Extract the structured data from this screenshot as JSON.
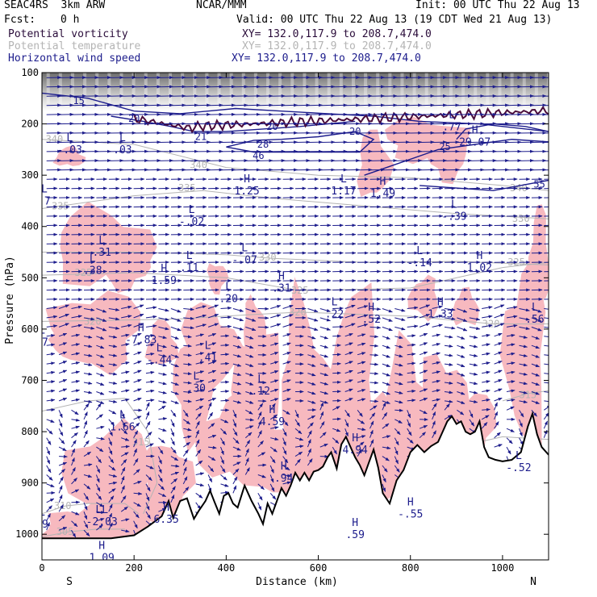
{
  "header": {
    "model": "SEAC4RS  3km ARW",
    "org": "NCAR/MMM",
    "init": "Init: 00 UTC Thu 22 Aug 13",
    "fcst_label": "Fcst:",
    "fcst_value": "0 h",
    "valid": "Valid: 00 UTC Thu 22 Aug 13 (19 CDT Wed 21 Aug 13)",
    "fields": [
      {
        "name": "Potential vorticity",
        "xy": "XY= 132.0,117.9 to 208.7,474.0"
      },
      {
        "name": "Potential temperature",
        "xy": "XY= 132.0,117.9 to 208.7,474.0"
      },
      {
        "name": "Horizontal wind speed",
        "xy": "XY= 132.0,117.9 to 208.7,474.0"
      }
    ]
  },
  "chart_data": {
    "type": "cross-section",
    "xlabel": "Distance (km)",
    "ylabel": "Pressure (hPa)",
    "xlim": [
      0,
      1100
    ],
    "ylim": [
      1050,
      100
    ],
    "x_ticks": [
      0,
      200,
      400,
      600,
      800,
      1000
    ],
    "y_ticks": [
      100,
      200,
      300,
      400,
      500,
      600,
      700,
      800,
      900,
      1000
    ],
    "x_end_labels": {
      "left": "S",
      "right": "N"
    },
    "colors": {
      "pv_shading": "#f7b9bf",
      "pv_strat": "#8a8a8a",
      "theta_contour": "#b4b4b4",
      "wind_contour": "#1c1c8c",
      "wind_vector": "#1c1c8c",
      "terrain": "#000000",
      "tropopause": "#4a0c3a"
    },
    "terrain_profile": [
      [
        0,
        1008
      ],
      [
        100,
        1008
      ],
      [
        150,
        1008
      ],
      [
        200,
        1002
      ],
      [
        230,
        985
      ],
      [
        260,
        965
      ],
      [
        275,
        935
      ],
      [
        285,
        968
      ],
      [
        300,
        935
      ],
      [
        315,
        930
      ],
      [
        330,
        970
      ],
      [
        340,
        955
      ],
      [
        355,
        935
      ],
      [
        365,
        915
      ],
      [
        375,
        938
      ],
      [
        385,
        960
      ],
      [
        395,
        925
      ],
      [
        405,
        920
      ],
      [
        415,
        940
      ],
      [
        425,
        948
      ],
      [
        440,
        905
      ],
      [
        455,
        935
      ],
      [
        470,
        960
      ],
      [
        480,
        980
      ],
      [
        490,
        940
      ],
      [
        500,
        960
      ],
      [
        510,
        935
      ],
      [
        520,
        910
      ],
      [
        530,
        925
      ],
      [
        540,
        905
      ],
      [
        550,
        880
      ],
      [
        560,
        895
      ],
      [
        570,
        880
      ],
      [
        580,
        895
      ],
      [
        590,
        878
      ],
      [
        600,
        875
      ],
      [
        610,
        868
      ],
      [
        620,
        850
      ],
      [
        628,
        840
      ],
      [
        640,
        872
      ],
      [
        650,
        825
      ],
      [
        660,
        810
      ],
      [
        670,
        830
      ],
      [
        680,
        850
      ],
      [
        690,
        865
      ],
      [
        700,
        885
      ],
      [
        710,
        860
      ],
      [
        720,
        835
      ],
      [
        730,
        870
      ],
      [
        740,
        920
      ],
      [
        755,
        940
      ],
      [
        770,
        895
      ],
      [
        785,
        875
      ],
      [
        800,
        840
      ],
      [
        815,
        826
      ],
      [
        830,
        840
      ],
      [
        845,
        828
      ],
      [
        860,
        820
      ],
      [
        870,
        800
      ],
      [
        880,
        780
      ],
      [
        890,
        770
      ],
      [
        900,
        785
      ],
      [
        910,
        780
      ],
      [
        920,
        800
      ],
      [
        930,
        805
      ],
      [
        940,
        800
      ],
      [
        950,
        780
      ],
      [
        960,
        830
      ],
      [
        970,
        850
      ],
      [
        985,
        855
      ],
      [
        1000,
        858
      ],
      [
        1020,
        855
      ],
      [
        1040,
        840
      ],
      [
        1055,
        790
      ],
      [
        1065,
        765
      ],
      [
        1075,
        805
      ],
      [
        1085,
        830
      ],
      [
        1100,
        845
      ]
    ],
    "theta_contours": [
      {
        "label": "340",
        "x": 27,
        "y": 230
      },
      {
        "label": "340",
        "x": 340,
        "y": 280
      },
      {
        "label": "340",
        "x": 1035,
        "y": 325
      },
      {
        "label": "335",
        "x": 40,
        "y": 360
      },
      {
        "label": "335",
        "x": 315,
        "y": 325
      },
      {
        "label": "330",
        "x": 490,
        "y": 460
      },
      {
        "label": "330",
        "x": 1040,
        "y": 385
      },
      {
        "label": "325",
        "x": 90,
        "y": 490
      },
      {
        "label": "325",
        "x": 560,
        "y": 525
      },
      {
        "label": "325",
        "x": 1030,
        "y": 470
      },
      {
        "label": "320",
        "x": 110,
        "y": 585
      },
      {
        "label": "320",
        "x": 555,
        "y": 567
      },
      {
        "label": "320",
        "x": 975,
        "y": 590
      },
      {
        "label": "315",
        "x": 215,
        "y": 820
      },
      {
        "label": "315",
        "x": 1055,
        "y": 728
      },
      {
        "label": "310",
        "x": 45,
        "y": 945
      },
      {
        "label": "305",
        "x": 50,
        "y": 995
      }
    ],
    "wind_contours": [
      {
        "label": "15",
        "x": 80,
        "y": 155
      },
      {
        "label": "20",
        "x": 200,
        "y": 190
      },
      {
        "label": "20",
        "x": 500,
        "y": 205
      },
      {
        "label": "21",
        "x": 345,
        "y": 225
      },
      {
        "label": "20",
        "x": 680,
        "y": 215
      },
      {
        "label": "28",
        "x": 480,
        "y": 240
      },
      {
        "label": "46",
        "x": 470,
        "y": 262
      },
      {
        "label": "25",
        "x": 875,
        "y": 245
      },
      {
        "label": "55",
        "x": 1080,
        "y": 318
      }
    ],
    "extrema": [
      {
        "type": "L",
        "value": "-.03",
        "x": 60,
        "y": 240
      },
      {
        "type": "L",
        "value": ".03",
        "x": 175,
        "y": 240
      },
      {
        "type": "L",
        "value": ".7",
        "x": 5,
        "y": 340
      },
      {
        "type": "H",
        "value": "1.25",
        "x": 445,
        "y": 320
      },
      {
        "type": "L",
        "value": "1.17",
        "x": 655,
        "y": 320
      },
      {
        "type": "H",
        "value": "1.49",
        "x": 740,
        "y": 325
      },
      {
        "type": "L",
        "value": ".77",
        "x": 890,
        "y": 195
      },
      {
        "type": "H",
        "value": "29.07",
        "x": 940,
        "y": 225
      },
      {
        "type": "L",
        "value": "-.02",
        "x": 325,
        "y": 380
      },
      {
        "type": "L",
        "value": "-.39",
        "x": 895,
        "y": 370
      },
      {
        "type": "L",
        "value": ".31",
        "x": 130,
        "y": 440
      },
      {
        "type": "L",
        "value": ".38",
        "x": 110,
        "y": 475
      },
      {
        "type": "L",
        "value": ".11",
        "x": 320,
        "y": 470
      },
      {
        "type": "H",
        "value": "1.59",
        "x": 265,
        "y": 495
      },
      {
        "type": "L",
        "value": "-.07",
        "x": 440,
        "y": 455
      },
      {
        "type": "L",
        "value": "-.14",
        "x": 820,
        "y": 460
      },
      {
        "type": "H",
        "value": "1.02",
        "x": 950,
        "y": 470
      },
      {
        "type": "H",
        "value": ".31",
        "x": 520,
        "y": 510
      },
      {
        "type": "L",
        "value": ".20",
        "x": 405,
        "y": 530
      },
      {
        "type": "L",
        "value": ".22",
        "x": 635,
        "y": 560
      },
      {
        "type": "H",
        "value": ".52",
        "x": 715,
        "y": 570
      },
      {
        "type": "H",
        "value": "1.33",
        "x": 865,
        "y": 560
      },
      {
        "type": "L",
        "value": ".56",
        "x": 1070,
        "y": 570
      },
      {
        "type": "H",
        "value": "-7.83",
        "x": 215,
        "y": 610
      },
      {
        "type": "L",
        "value": "-.44",
        "x": 255,
        "y": 650
      },
      {
        "type": "L",
        "value": ".41",
        "x": 360,
        "y": 645
      },
      {
        "type": "L",
        "value": ".30",
        "x": 335,
        "y": 705
      },
      {
        "type": "L",
        "value": ".12",
        "x": 475,
        "y": 710
      },
      {
        "type": "H",
        "value": "4.59",
        "x": 500,
        "y": 770
      },
      {
        "type": "L",
        "value": "1.66",
        "x": 175,
        "y": 780
      },
      {
        "type": "H",
        "value": "4.94",
        "x": 680,
        "y": 825
      },
      {
        "type": "L",
        "value": "-.52",
        "x": 1035,
        "y": 860
      },
      {
        "type": "H",
        "value": ".94",
        "x": 525,
        "y": 880
      },
      {
        "type": "H",
        "value": "6.35",
        "x": 270,
        "y": 960
      },
      {
        "type": "LL",
        "value": "-2.03",
        "x": 130,
        "y": 965
      },
      {
        "type": "H",
        "value": "-.55",
        "x": 800,
        "y": 950
      },
      {
        "type": "H",
        "value": ".59",
        "x": 680,
        "y": 990
      },
      {
        "type": "H",
        "value": "1.09",
        "x": 130,
        "y": 1035
      },
      {
        "type": "L",
        "value": "07",
        "x": 0,
        "y": 615
      },
      {
        "type": "L",
        "value": ".9",
        "x": 0,
        "y": 970
      }
    ]
  }
}
